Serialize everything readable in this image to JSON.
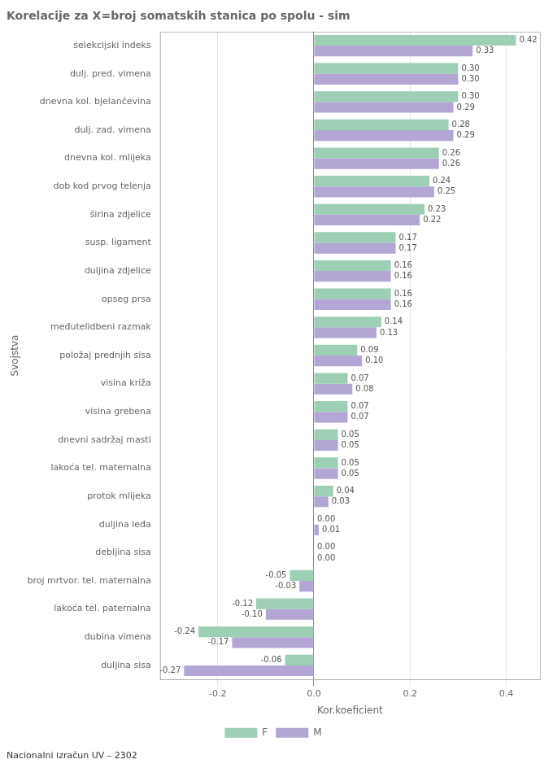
{
  "chart_data": {
    "type": "bar",
    "orientation": "horizontal",
    "title": "Korelacije za X=broj somatskih stanica po spolu - sim",
    "xlabel": "Kor.koeficient",
    "ylabel": "Svojstva",
    "annotations": [
      "Nacionalni izračun UV – 2302"
    ],
    "categories": [
      "selekcijski indeks",
      "dulj. pred. vimena",
      "dnevna kol. bjelančevina",
      "dulj. zad. vimena",
      "dnevna kol. mlijeka",
      "dob kod prvog telenja",
      "širina zdjelice",
      "susp. ligament",
      "duljina zdjelice",
      "opseg prsa",
      "međutelidbeni razmak",
      "položaj prednjih sisa",
      "visina križa",
      "visina grebena",
      "dnevni sadržaj masti",
      "lakoća tel. maternalna",
      "protok mlijeka",
      "duljina leđa",
      "debljina sisa",
      "broj mrtvor. tel. maternalna",
      "lakoća tel. paternalna",
      "dubina vimena",
      "duljina sisa"
    ],
    "series": [
      {
        "name": "M",
        "color": "#b3a6d4",
        "values": [
          0.33,
          0.3,
          0.29,
          0.29,
          0.26,
          0.25,
          0.22,
          0.17,
          0.16,
          0.16,
          0.13,
          0.1,
          0.08,
          0.07,
          0.05,
          0.05,
          0.03,
          0.01,
          0.0,
          -0.03,
          -0.1,
          -0.17,
          -0.27
        ],
        "value_labels": [
          "0.33",
          "0.30",
          "0.29",
          "0.29",
          "0.26",
          "0.25",
          "0.22",
          "0.17",
          "0.16",
          "0.16",
          "0.13",
          "0.10",
          "0.08",
          "0.07",
          "0.05",
          "0.05",
          "0.03",
          "0.01",
          "0.00",
          "-0.03",
          "-0.10",
          "-0.17",
          "-0.27"
        ]
      },
      {
        "name": "F",
        "color": "#9dcfb5",
        "values": [
          0.42,
          0.3,
          0.3,
          0.28,
          0.26,
          0.24,
          0.23,
          0.17,
          0.16,
          0.16,
          0.14,
          0.09,
          0.07,
          0.07,
          0.05,
          0.05,
          0.04,
          0.0,
          0.0,
          -0.05,
          -0.12,
          -0.24,
          -0.06
        ],
        "value_labels": [
          "0.42",
          "0.30",
          "0.30",
          "0.28",
          "0.26",
          "0.24",
          "0.23",
          "0.17",
          "0.16",
          "0.16",
          "0.14",
          "0.09",
          "0.07",
          "0.07",
          "0.05",
          "0.05",
          "0.04",
          "0.00",
          "0.00",
          "-0.05",
          "-0.12",
          "-0.24",
          "-0.06"
        ]
      }
    ],
    "xlim": [
      -0.32,
      0.47
    ],
    "xticks": [
      -0.2,
      {
        "value": 0,
        "label": "0.0"
      },
      0.2,
      0.4
    ],
    "grid": "x",
    "legend": "bottom",
    "data_labels": true
  }
}
